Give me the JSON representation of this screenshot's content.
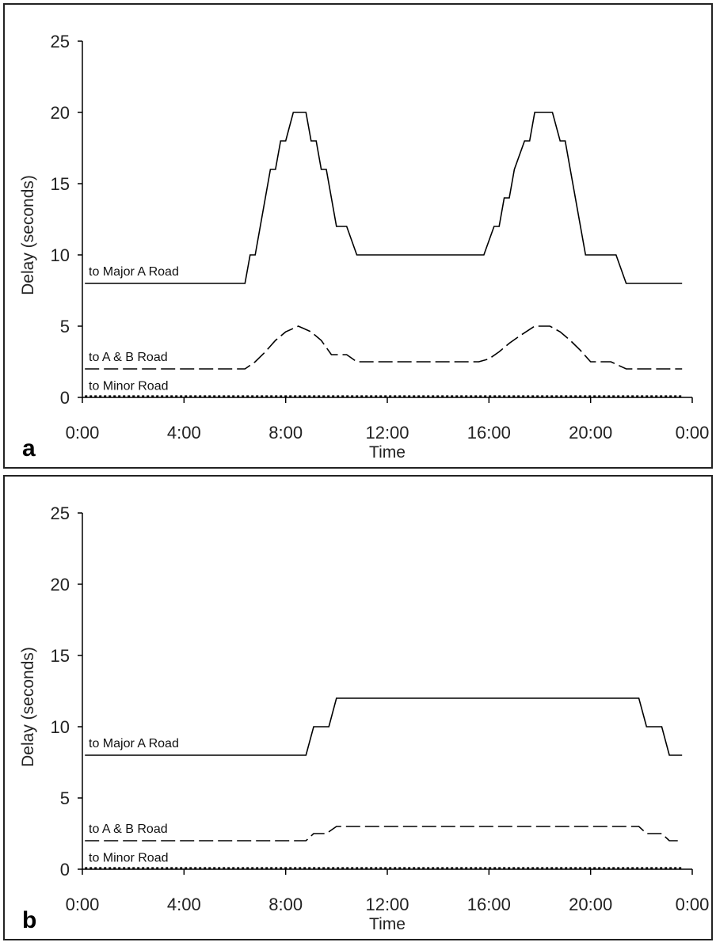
{
  "chart_data": [
    {
      "type": "line",
      "panel_label": "a",
      "xlabel": "Time",
      "ylabel": "Delay (seconds)",
      "xlim": [
        0,
        24
      ],
      "ylim": [
        0,
        25
      ],
      "x_ticks": [
        0,
        4,
        8,
        12,
        16,
        20,
        24
      ],
      "x_tick_labels": [
        "0:00",
        "4:00",
        "8:00",
        "12:00",
        "16:00",
        "20:00",
        "0:00"
      ],
      "y_ticks": [
        0,
        5,
        10,
        15,
        20,
        25
      ],
      "y_tick_labels": [
        "0",
        "5",
        "10",
        "15",
        "20",
        "25"
      ],
      "series": [
        {
          "name": "to Major A Road",
          "style": "solid",
          "points": [
            [
              0.1,
              8
            ],
            [
              6.4,
              8
            ],
            [
              6.6,
              10
            ],
            [
              6.8,
              10
            ],
            [
              7.2,
              14
            ],
            [
              7.4,
              16
            ],
            [
              7.6,
              16
            ],
            [
              7.8,
              18
            ],
            [
              8.0,
              18
            ],
            [
              8.3,
              20
            ],
            [
              8.8,
              20
            ],
            [
              9.0,
              18
            ],
            [
              9.2,
              18
            ],
            [
              9.4,
              16
            ],
            [
              9.6,
              16
            ],
            [
              9.8,
              14
            ],
            [
              10.0,
              12
            ],
            [
              10.4,
              12
            ],
            [
              10.8,
              10
            ],
            [
              15.8,
              10
            ],
            [
              16.2,
              12
            ],
            [
              16.4,
              12
            ],
            [
              16.6,
              14
            ],
            [
              16.8,
              14
            ],
            [
              17.0,
              16
            ],
            [
              17.4,
              18
            ],
            [
              17.6,
              18
            ],
            [
              17.8,
              20
            ],
            [
              18.5,
              20
            ],
            [
              18.8,
              18
            ],
            [
              19.0,
              18
            ],
            [
              19.2,
              16
            ],
            [
              19.8,
              10
            ],
            [
              21.0,
              10
            ],
            [
              21.4,
              8
            ],
            [
              23.6,
              8
            ]
          ]
        },
        {
          "name": "to A & B Road",
          "style": "dashed",
          "points": [
            [
              0.1,
              2
            ],
            [
              6.4,
              2
            ],
            [
              6.8,
              2.5
            ],
            [
              7.2,
              3.2
            ],
            [
              7.6,
              4.0
            ],
            [
              8.0,
              4.6
            ],
            [
              8.5,
              5
            ],
            [
              9.0,
              4.6
            ],
            [
              9.4,
              4.0
            ],
            [
              9.6,
              3.5
            ],
            [
              9.8,
              3.0
            ],
            [
              10.4,
              3.0
            ],
            [
              10.8,
              2.5
            ],
            [
              15.6,
              2.5
            ],
            [
              16.0,
              2.7
            ],
            [
              16.4,
              3.2
            ],
            [
              16.8,
              3.8
            ],
            [
              17.2,
              4.3
            ],
            [
              17.8,
              5
            ],
            [
              18.4,
              5
            ],
            [
              18.8,
              4.6
            ],
            [
              19.2,
              4.0
            ],
            [
              19.6,
              3.3
            ],
            [
              20.0,
              2.5
            ],
            [
              20.8,
              2.5
            ],
            [
              21.4,
              2.0
            ],
            [
              23.6,
              2.0
            ]
          ]
        },
        {
          "name": "to Minor Road",
          "style": "dotted",
          "points": [
            [
              0.1,
              0.08
            ],
            [
              23.6,
              0.08
            ]
          ]
        }
      ]
    },
    {
      "type": "line",
      "panel_label": "b",
      "xlabel": "Time",
      "ylabel": "Delay (seconds)",
      "xlim": [
        0,
        24
      ],
      "ylim": [
        0,
        25
      ],
      "x_ticks": [
        0,
        4,
        8,
        12,
        16,
        20,
        24
      ],
      "x_tick_labels": [
        "0:00",
        "4:00",
        "8:00",
        "12:00",
        "16:00",
        "20:00",
        "0:00"
      ],
      "y_ticks": [
        0,
        5,
        10,
        15,
        20,
        25
      ],
      "y_tick_labels": [
        "0",
        "5",
        "10",
        "15",
        "20",
        "25"
      ],
      "series": [
        {
          "name": "to Major A Road",
          "style": "solid",
          "points": [
            [
              0.1,
              8
            ],
            [
              8.8,
              8
            ],
            [
              9.1,
              10
            ],
            [
              9.7,
              10
            ],
            [
              10.0,
              12
            ],
            [
              21.9,
              12
            ],
            [
              22.2,
              10
            ],
            [
              22.8,
              10
            ],
            [
              23.1,
              8
            ],
            [
              23.6,
              8
            ]
          ]
        },
        {
          "name": "to A & B Road",
          "style": "dashed",
          "points": [
            [
              0.1,
              2
            ],
            [
              8.8,
              2
            ],
            [
              9.1,
              2.5
            ],
            [
              9.6,
              2.5
            ],
            [
              10.0,
              3
            ],
            [
              21.9,
              3
            ],
            [
              22.2,
              2.5
            ],
            [
              22.8,
              2.5
            ],
            [
              23.1,
              2
            ],
            [
              23.6,
              2
            ]
          ]
        },
        {
          "name": "to Minor Road",
          "style": "dotted",
          "points": [
            [
              0.1,
              0.08
            ],
            [
              23.6,
              0.08
            ]
          ]
        }
      ]
    }
  ]
}
